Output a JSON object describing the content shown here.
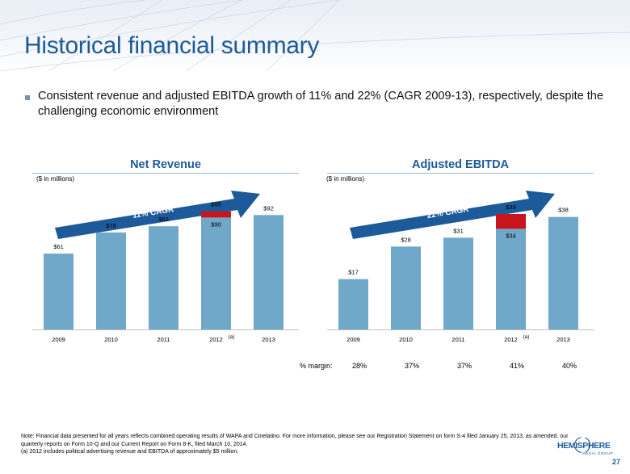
{
  "slide": {
    "title": "Historical financial summary",
    "bullet": "Consistent revenue and adjusted EBITDA growth of 11% and 22% (CAGR 2009-13), respectively, despite the challenging economic environment",
    "page_number": "27"
  },
  "logo": {
    "text": "HEMISPHERE",
    "subtext": "MEDIA GROUP"
  },
  "note": {
    "line1": "Note: Financial data presented for all years reflects combined operating results of WAPA and Cinelatino. For more information, please see our Registration Statement on form S-4 filed January 25, 2013, as amended, our quarterly reports on Form 10-Q and our Current Report on Form 8-K, filed March 10, 2014.",
    "line2": "(a)  2012 includes political advertising revenue and EBITDA of approximately $5 million."
  },
  "margins": {
    "label": "% margin:",
    "values": [
      "28%",
      "37%",
      "37%",
      "41%",
      "40%"
    ]
  },
  "colors": {
    "bar": "#6fa8c9",
    "political": "#c8141c",
    "arrow": "#1d5a9a",
    "title": "#1d5a9a"
  },
  "chart_data": [
    {
      "type": "bar",
      "title": "Net Revenue",
      "ylabel": "($ in millions)",
      "cagr_label": "11% CAGR",
      "categories": [
        "2009",
        "2010",
        "2011",
        "2012",
        "2013"
      ],
      "footnote_marker": {
        "category": "2012",
        "text": "(a)"
      },
      "ylim": [
        0,
        100
      ],
      "series": [
        {
          "values": [
            61,
            78,
            83,
            90,
            92
          ]
        },
        {
          "values": [
            0,
            0,
            0,
            5,
            0
          ]
        }
      ],
      "total_labels": [
        "$61",
        "$78",
        "$83",
        "$95",
        "$92"
      ],
      "inner_labels": [
        "",
        "",
        "",
        "$90",
        ""
      ]
    },
    {
      "type": "bar",
      "title": "Adjusted EBITDA",
      "ylabel": "($ in millions)",
      "cagr_label": "22% CAGR",
      "categories": [
        "2009",
        "2010",
        "2011",
        "2012",
        "2013"
      ],
      "footnote_marker": {
        "category": "2012",
        "text": "(a)"
      },
      "ylim": [
        0,
        42
      ],
      "series": [
        {
          "values": [
            17,
            28,
            31,
            34,
            38
          ]
        },
        {
          "values": [
            0,
            0,
            0,
            5,
            0
          ]
        }
      ],
      "total_labels": [
        "$17",
        "$28",
        "$31",
        "$39",
        "$38"
      ],
      "inner_labels": [
        "",
        "",
        "",
        "$34",
        ""
      ]
    }
  ]
}
